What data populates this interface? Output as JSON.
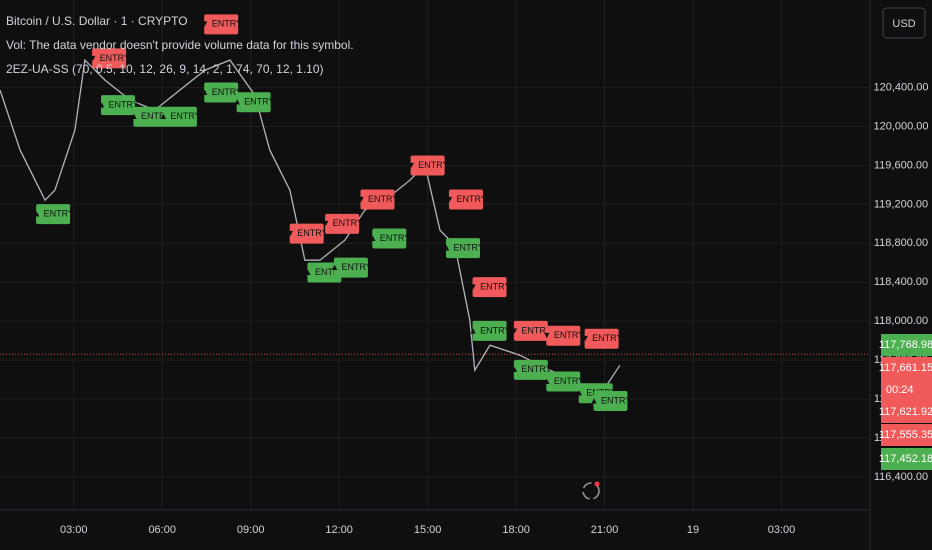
{
  "chart_data": {
    "type": "line",
    "title": "Bitcoin / U.S. Dollar · 1 · CRYPTO",
    "subtitles": [
      "Vol: The data vendor doesn't provide volume data for this symbol.",
      "2EZ-UA-SS (70, 0.5, 10, 12, 26, 9, 14, 2, 1.74, 70, 12, 1.10)"
    ],
    "currency": "USD",
    "grid": true,
    "color": "#b2b5be",
    "buy_color": "#4caf50",
    "sell_color": "#f05a5a",
    "xlim": [
      0.5,
      30
    ],
    "ylim": [
      116060,
      121300
    ],
    "xticks": [
      {
        "value": 3,
        "label": "03:00"
      },
      {
        "value": 6,
        "label": "06:00"
      },
      {
        "value": 9,
        "label": "09:00"
      },
      {
        "value": 12,
        "label": "12:00"
      },
      {
        "value": 15,
        "label": "15:00"
      },
      {
        "value": 18,
        "label": "18:00"
      },
      {
        "value": 21,
        "label": "21:00"
      },
      {
        "value": 24,
        "label": "19"
      },
      {
        "value": 27,
        "label": "03:00"
      }
    ],
    "yticks": [
      {
        "value": 116400,
        "label": "116,400.00"
      },
      {
        "value": 116800,
        "label": "116,800.00"
      },
      {
        "value": 117200,
        "label": "117,200.00"
      },
      {
        "value": 117600,
        "label": "117,600.00"
      },
      {
        "value": 118000,
        "label": "118,000.00"
      },
      {
        "value": 118400,
        "label": "118,400.00"
      },
      {
        "value": 118800,
        "label": "118,800.00"
      },
      {
        "value": 119200,
        "label": "119,200.00"
      },
      {
        "value": 119600,
        "label": "119,600.00"
      },
      {
        "value": 120000,
        "label": "120,000.00"
      },
      {
        "value": 120400,
        "label": "120,400.00"
      }
    ],
    "x": [
      0.5,
      1.18,
      2.03,
      2.36,
      3.04,
      3.38,
      4.06,
      4.91,
      5.75,
      6.6,
      7.45,
      8.3,
      9.14,
      9.65,
      10.33,
      10.84,
      11.35,
      12.19,
      12.87,
      13.55,
      14.4,
      14.91,
      15.42,
      15.92,
      16.43,
      16.6,
      17.11,
      18.13,
      19.14,
      19.99,
      20.84,
      21.52
    ],
    "values": [
      120375,
      119758,
      119243,
      119346,
      119963,
      120683,
      120477,
      120272,
      120169,
      120375,
      120580,
      120683,
      120323,
      119758,
      119346,
      118627,
      118627,
      118832,
      119140,
      119243,
      119449,
      119603,
      118935,
      118781,
      118010,
      117496,
      117753,
      117650,
      117496,
      117393,
      117239,
      117547
    ],
    "signals": [
      {
        "side": "buy",
        "label": "▲ ENTRY",
        "x": 2.3,
        "value": 119100
      },
      {
        "side": "buy",
        "label": "▲ ENTRY",
        "x": 4.5,
        "value": 120220
      },
      {
        "side": "buy",
        "label": "▲ ENTRY",
        "x": 5.6,
        "value": 120100
      },
      {
        "side": "buy",
        "label": "▲ ENTRY",
        "x": 6.6,
        "value": 120100
      },
      {
        "side": "sell",
        "label": "▼ ENTRY",
        "x": 4.2,
        "value": 120700
      },
      {
        "side": "sell",
        "label": "▼ ENTRY",
        "x": 8.0,
        "value": 121050
      },
      {
        "side": "buy",
        "label": "▲ ENTRY",
        "x": 8.0,
        "value": 120350
      },
      {
        "side": "buy",
        "label": "▲ ENTRY",
        "x": 9.1,
        "value": 120250
      },
      {
        "side": "sell",
        "label": "▼ ENTRY",
        "x": 10.9,
        "value": 118900
      },
      {
        "side": "buy",
        "label": "▲ ENTRY",
        "x": 11.5,
        "value": 118500
      },
      {
        "side": "sell",
        "label": "▼ ENTRY",
        "x": 12.1,
        "value": 119000
      },
      {
        "side": "buy",
        "label": "▲ ENTRY",
        "x": 12.4,
        "value": 118550
      },
      {
        "side": "sell",
        "label": "▼ ENTRY",
        "x": 13.3,
        "value": 119250
      },
      {
        "side": "buy",
        "label": "▲ ENTRY",
        "x": 13.7,
        "value": 118850
      },
      {
        "side": "sell",
        "label": "▼ ENTRY",
        "x": 15.0,
        "value": 119600
      },
      {
        "side": "sell",
        "label": "▼ ENTRY",
        "x": 16.3,
        "value": 119250
      },
      {
        "side": "buy",
        "label": "▲ ENTRY",
        "x": 16.2,
        "value": 118750
      },
      {
        "side": "sell",
        "label": "▼ ENTRY",
        "x": 17.1,
        "value": 118350
      },
      {
        "side": "buy",
        "label": "▲ ENTRY",
        "x": 17.1,
        "value": 117900
      },
      {
        "side": "sell",
        "label": "▼ ENTRY",
        "x": 18.5,
        "value": 117900
      },
      {
        "side": "buy",
        "label": "▲ ENTRY",
        "x": 18.5,
        "value": 117500
      },
      {
        "side": "sell",
        "label": "▼ ENTRY",
        "x": 19.6,
        "value": 117850
      },
      {
        "side": "buy",
        "label": "▲ ENTRY",
        "x": 19.6,
        "value": 117380
      },
      {
        "side": "sell",
        "label": "▼ ENTRY",
        "x": 20.9,
        "value": 117820
      },
      {
        "side": "buy",
        "label": "▲ ENTRY",
        "x": 20.7,
        "value": 117260
      },
      {
        "side": "buy",
        "label": "▲ ENTRY",
        "x": 21.2,
        "value": 117180
      }
    ],
    "price_tags": [
      {
        "value": 117768.98,
        "label": "117,768.98",
        "side": "buy"
      },
      {
        "value": 117661.15,
        "label": "117,661.15",
        "side": "sell"
      },
      {
        "value": 117621.92,
        "label": "117,621.92",
        "side": "sell"
      },
      {
        "value": 117555.35,
        "label": "117,555.35",
        "side": "sell"
      },
      {
        "value": 117452.18,
        "label": "117,452.18",
        "side": "buy"
      }
    ],
    "countdown": "00:24"
  }
}
